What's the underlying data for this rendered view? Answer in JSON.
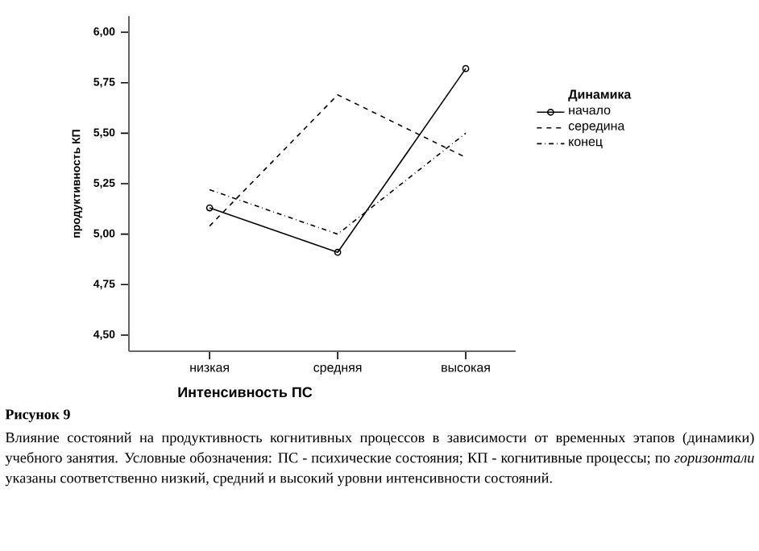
{
  "chart_data": {
    "type": "line",
    "ylabel": "продуктивность КП",
    "xlabel": "Интенсивность ПС",
    "legend_title": "Динамика",
    "legend": "right",
    "categories": [
      "низкая",
      "средняя",
      "высокая"
    ],
    "ylim": [
      4.42,
      6.08
    ],
    "yticks": [
      {
        "value": 4.5,
        "label": "4,50"
      },
      {
        "value": 4.75,
        "label": "4,75"
      },
      {
        "value": 5.0,
        "label": "5,00"
      },
      {
        "value": 5.25,
        "label": "5,25"
      },
      {
        "value": 5.5,
        "label": "5,50"
      },
      {
        "value": 5.75,
        "label": "5,75"
      },
      {
        "value": 6.0,
        "label": "6,00"
      }
    ],
    "series": [
      {
        "name": "начало",
        "color": "#000000",
        "line_style": "solid",
        "marker": "circle",
        "values": [
          5.13,
          4.91,
          5.82
        ]
      },
      {
        "name": "середина",
        "color": "#000000",
        "line_style": "dashed",
        "marker": "none",
        "values": [
          5.04,
          5.69,
          5.38
        ]
      },
      {
        "name": "конец",
        "color": "#000000",
        "line_style": "dashdot",
        "marker": "none",
        "values": [
          5.22,
          5.0,
          5.5
        ]
      }
    ],
    "annotations": [
      "Рисунок 9",
      "Влияние состояний на продуктивность когнитивных процессов в зависимости от временных этапов (динамики) учебного занятия. Условные обозначения: ПС - психические состояния; КП - когнитивные процессы; по *горизонтали* указаны соответственно низкий, средний и высокий уровни интенсивности состояний."
    ]
  }
}
